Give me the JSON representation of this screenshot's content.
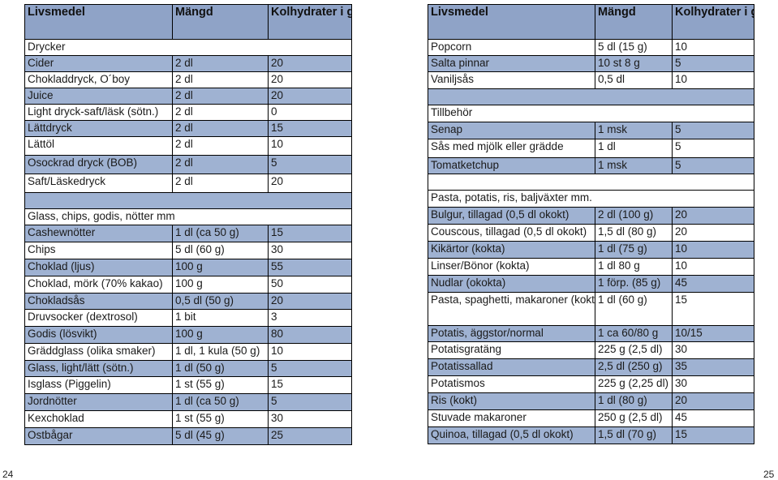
{
  "left_table": {
    "headers": [
      "Livsmedel",
      "Mängd",
      "Kolhydrater i gram"
    ],
    "rows": [
      {
        "type": "section",
        "label": "Drycker",
        "h": 20,
        "color": "light"
      },
      {
        "type": "item",
        "cells": [
          "Cider",
          "2 dl",
          "20"
        ],
        "h": 20,
        "color": "blue"
      },
      {
        "type": "item",
        "cells": [
          "Chokladdryck, O´boy",
          "2 dl",
          "20"
        ],
        "h": 20,
        "color": "light"
      },
      {
        "type": "item",
        "cells": [
          "Juice",
          "2 dl",
          "20"
        ],
        "h": 20,
        "color": "blue"
      },
      {
        "type": "item",
        "cells": [
          "Light dryck-saft/läsk (sötn.)",
          "2 dl",
          "0"
        ],
        "h": 20,
        "color": "light"
      },
      {
        "type": "item",
        "cells": [
          "Lättdryck",
          "2 dl",
          "15"
        ],
        "h": 20,
        "color": "blue"
      },
      {
        "type": "item",
        "cells": [
          "Lättöl",
          "2 dl",
          "10"
        ],
        "h": 23,
        "color": "light"
      },
      {
        "type": "item",
        "cells": [
          "Osockrad dryck (BOB)",
          "2 dl",
          "5"
        ],
        "h": 23,
        "color": "blue"
      },
      {
        "type": "item",
        "cells": [
          "Saft/Läskedryck",
          "2 dl",
          "20"
        ],
        "h": 23,
        "color": "light"
      },
      {
        "type": "blank",
        "h": 20,
        "color": "blue"
      },
      {
        "type": "section",
        "label": "Glass, chips, godis, nötter mm",
        "h": 20,
        "color": "light"
      },
      {
        "type": "item",
        "cells": [
          "Cashewnötter",
          "1 dl (ca 50 g)",
          "15"
        ],
        "h": 21,
        "color": "blue"
      },
      {
        "type": "item",
        "cells": [
          "Chips",
          "5 dl (60 g)",
          "30"
        ],
        "h": 21,
        "color": "light"
      },
      {
        "type": "item",
        "cells": [
          "Choklad (ljus)",
          "100 g",
          "55"
        ],
        "h": 21,
        "color": "blue"
      },
      {
        "type": "item",
        "cells": [
          "Choklad, mörk (70% kakao)",
          "100 g",
          "50"
        ],
        "h": 21,
        "color": "light"
      },
      {
        "type": "item",
        "cells": [
          "Chokladsås",
          "0,5 dl (50 g)",
          "20"
        ],
        "h": 20,
        "color": "blue"
      },
      {
        "type": "item",
        "cells": [
          "Druvsocker (dextrosol)",
          "1 bit",
          "3"
        ],
        "h": 21,
        "color": "light"
      },
      {
        "type": "item",
        "cells": [
          "Godis (lösvikt)",
          "100 g",
          "80"
        ],
        "h": 21,
        "color": "blue"
      },
      {
        "type": "item",
        "cells": [
          "Gräddglass (olika smaker)",
          "1 dl, 1 kula (50 g)",
          "10"
        ],
        "h": 21,
        "color": "light"
      },
      {
        "type": "item",
        "cells": [
          "Glass, light/lätt (sötn.)",
          "1 dl (50 g)",
          "5"
        ],
        "h": 20,
        "color": "blue"
      },
      {
        "type": "item",
        "cells": [
          "Isglass (Piggelin)",
          "1 st (55 g)",
          "15"
        ],
        "h": 21,
        "color": "light"
      },
      {
        "type": "item",
        "cells": [
          "Jordnötter",
          "1 dl (ca 50 g)",
          "5"
        ],
        "h": 21,
        "color": "blue"
      },
      {
        "type": "item",
        "cells": [
          "Kexchoklad",
          "1 st (55 g)",
          "30"
        ],
        "h": 21,
        "color": "light"
      },
      {
        "type": "item",
        "cells": [
          "Ostbågar",
          "5 dl (45 g)",
          "25"
        ],
        "h": 21,
        "color": "blue"
      }
    ]
  },
  "right_table": {
    "headers": [
      "Livsmedel",
      "Mängd",
      "Kolhydrater i gram"
    ],
    "rows": [
      {
        "type": "item",
        "cells": [
          "Popcorn",
          "5 dl (15 g)",
          "10"
        ],
        "h": 20,
        "color": "light"
      },
      {
        "type": "item",
        "cells": [
          "Salta pinnar",
          "10 st 8 g",
          "5"
        ],
        "h": 20,
        "color": "blue"
      },
      {
        "type": "item",
        "cells": [
          "Vaniljsås",
          "0,5 dl",
          "10"
        ],
        "h": 21,
        "color": "light"
      },
      {
        "type": "blank",
        "h": 20,
        "color": "blue"
      },
      {
        "type": "section",
        "label": "Tillbehör",
        "h": 21,
        "color": "light"
      },
      {
        "type": "item",
        "cells": [
          "Senap",
          "1 msk",
          "5"
        ],
        "h": 21,
        "color": "blue"
      },
      {
        "type": "item",
        "cells": [
          "Sås med mjölk eller grädde",
          "1 dl",
          "5"
        ],
        "h": 23,
        "color": "light"
      },
      {
        "type": "item",
        "cells": [
          "Tomatketchup",
          "1 msk",
          "5"
        ],
        "h": 20,
        "color": "blue"
      },
      {
        "type": "blank",
        "h": 20,
        "color": "light"
      },
      {
        "type": "section",
        "label": "Pasta, potatis, ris, baljväxter mm.",
        "h": 21,
        "color": "light"
      },
      {
        "type": "item",
        "cells": [
          "Bulgur, tillagad (0,5 dl okokt)",
          "2 dl (100 g)",
          "20"
        ],
        "h": 21,
        "color": "blue"
      },
      {
        "type": "item",
        "cells": [
          "Couscous, tillagad (0,5 dl okokt)",
          "1,5 dl (80 g)",
          "20"
        ],
        "h": 21,
        "color": "light"
      },
      {
        "type": "item",
        "cells": [
          "Kikärtor (kokta)",
          "1 dl (75 g)",
          "10"
        ],
        "h": 21,
        "color": "blue"
      },
      {
        "type": "item",
        "cells": [
          "Linser/Bönor (kokta)",
          "1 dl 80 g",
          "10"
        ],
        "h": 21,
        "color": "light"
      },
      {
        "type": "item",
        "cells": [
          "Nudlar (okokta)",
          "1 förp. (85 g)",
          "45"
        ],
        "h": 21,
        "color": "blue"
      },
      {
        "type": "item",
        "cells": [
          "Pasta, spaghetti, makaroner (kokta)",
          "1 dl (60 g)",
          "15"
        ],
        "h": 41,
        "color": "light",
        "wrap": true
      },
      {
        "type": "item",
        "cells": [
          "Potatis, äggstor/normal",
          "1 ca 60/80 g",
          "10/15"
        ],
        "h": 20,
        "color": "blue"
      },
      {
        "type": "item",
        "cells": [
          "Potatisgratäng",
          "225 g (2,5 dl)",
          "30"
        ],
        "h": 21,
        "color": "light"
      },
      {
        "type": "item",
        "cells": [
          "Potatissallad",
          "2,5 dl (250 g)",
          "35"
        ],
        "h": 21,
        "color": "blue"
      },
      {
        "type": "item",
        "cells": [
          "Potatismos",
          "225 g (2,25 dl)",
          "30"
        ],
        "h": 21,
        "color": "light"
      },
      {
        "type": "item",
        "cells": [
          "Ris (kokt)",
          "1 dl (80 g)",
          "20"
        ],
        "h": 21,
        "color": "blue"
      },
      {
        "type": "item",
        "cells": [
          "Stuvade makaroner",
          "250 g (2,5 dl)",
          "45"
        ],
        "h": 21,
        "color": "light"
      },
      {
        "type": "item",
        "cells": [
          "Quinoa, tillagad (0,5 dl okokt)",
          "1,5 dl (70 g)",
          "15"
        ],
        "h": 21,
        "color": "blue"
      }
    ]
  },
  "page_numbers": {
    "left": "24",
    "right": "25"
  },
  "colors": {
    "header_blue": "#8fa3c7",
    "row_blue": "#9fb2d2",
    "row_light": "#ffffff",
    "border": "#000000"
  }
}
